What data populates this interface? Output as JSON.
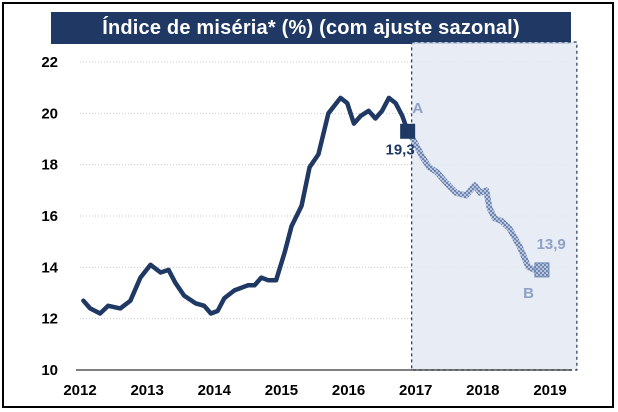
{
  "chart_data": {
    "type": "line",
    "title": "Índice de miséria* (%)  (com ajuste sazonal)",
    "xlabel": "",
    "ylabel": "",
    "xlim": [
      2012,
      2019
    ],
    "ylim": [
      10,
      22
    ],
    "y_ticks": [
      "10",
      "12",
      "14",
      "16",
      "18",
      "20",
      "22"
    ],
    "x_ticks": [
      "2012",
      "2013",
      "2014",
      "2015",
      "2016",
      "2017",
      "2018",
      "2019"
    ],
    "grid": "horizontal-dotted",
    "series": [
      {
        "style": "solid-dark-blue",
        "color": "#1f3864",
        "points": [
          [
            2012.05,
            12.7
          ],
          [
            2012.15,
            12.4
          ],
          [
            2012.3,
            12.2
          ],
          [
            2012.42,
            12.5
          ],
          [
            2012.6,
            12.4
          ],
          [
            2012.75,
            12.7
          ],
          [
            2012.9,
            13.6
          ],
          [
            2013.05,
            14.1
          ],
          [
            2013.2,
            13.8
          ],
          [
            2013.32,
            13.9
          ],
          [
            2013.42,
            13.4
          ],
          [
            2013.55,
            12.9
          ],
          [
            2013.72,
            12.6
          ],
          [
            2013.85,
            12.5
          ],
          [
            2013.95,
            12.2
          ],
          [
            2014.05,
            12.3
          ],
          [
            2014.15,
            12.8
          ],
          [
            2014.3,
            13.1
          ],
          [
            2014.5,
            13.3
          ],
          [
            2014.6,
            13.3
          ],
          [
            2014.7,
            13.6
          ],
          [
            2014.8,
            13.5
          ],
          [
            2014.92,
            13.5
          ],
          [
            2015.05,
            14.6
          ],
          [
            2015.15,
            15.6
          ],
          [
            2015.3,
            16.4
          ],
          [
            2015.42,
            17.9
          ],
          [
            2015.55,
            18.4
          ],
          [
            2015.7,
            20.0
          ],
          [
            2015.88,
            20.6
          ],
          [
            2015.98,
            20.4
          ],
          [
            2016.08,
            19.6
          ],
          [
            2016.18,
            19.9
          ],
          [
            2016.3,
            20.1
          ],
          [
            2016.4,
            19.8
          ],
          [
            2016.5,
            20.1
          ],
          [
            2016.6,
            20.6
          ],
          [
            2016.7,
            20.4
          ],
          [
            2016.8,
            19.9
          ],
          [
            2016.88,
            19.3
          ]
        ]
      },
      {
        "style": "checkered-light-blue",
        "color": "#8ea2c6",
        "points": [
          [
            2016.88,
            19.3
          ],
          [
            2016.98,
            18.9
          ],
          [
            2017.1,
            18.3
          ],
          [
            2017.2,
            17.9
          ],
          [
            2017.32,
            17.7
          ],
          [
            2017.45,
            17.3
          ],
          [
            2017.6,
            16.9
          ],
          [
            2017.75,
            16.8
          ],
          [
            2017.88,
            17.2
          ],
          [
            2017.96,
            16.9
          ],
          [
            2018.05,
            17.0
          ],
          [
            2018.1,
            16.3
          ],
          [
            2018.18,
            15.9
          ],
          [
            2018.28,
            15.8
          ],
          [
            2018.4,
            15.5
          ],
          [
            2018.55,
            14.8
          ],
          [
            2018.68,
            14.0
          ],
          [
            2018.78,
            13.9
          ],
          [
            2018.88,
            13.9
          ]
        ]
      }
    ],
    "highlight_region": [
      2016.88,
      2019.4
    ],
    "annotations": [
      {
        "text": "A",
        "x": 2016.95,
        "y": 20.2,
        "color": "#8ea2c6"
      },
      {
        "text": "19,3",
        "x": 2016.55,
        "y": 18.6,
        "color": "#1f3864"
      },
      {
        "text": "13,9",
        "x": 2018.8,
        "y": 14.9,
        "color": "#8ea2c6"
      },
      {
        "text": "B",
        "x": 2018.6,
        "y": 13.0,
        "color": "#8ea2c6"
      }
    ],
    "markers": [
      {
        "x": 2016.88,
        "y": 19.3,
        "color": "#1f3864"
      },
      {
        "x": 2018.88,
        "y": 13.9,
        "color": "#8ea2c6"
      }
    ]
  }
}
